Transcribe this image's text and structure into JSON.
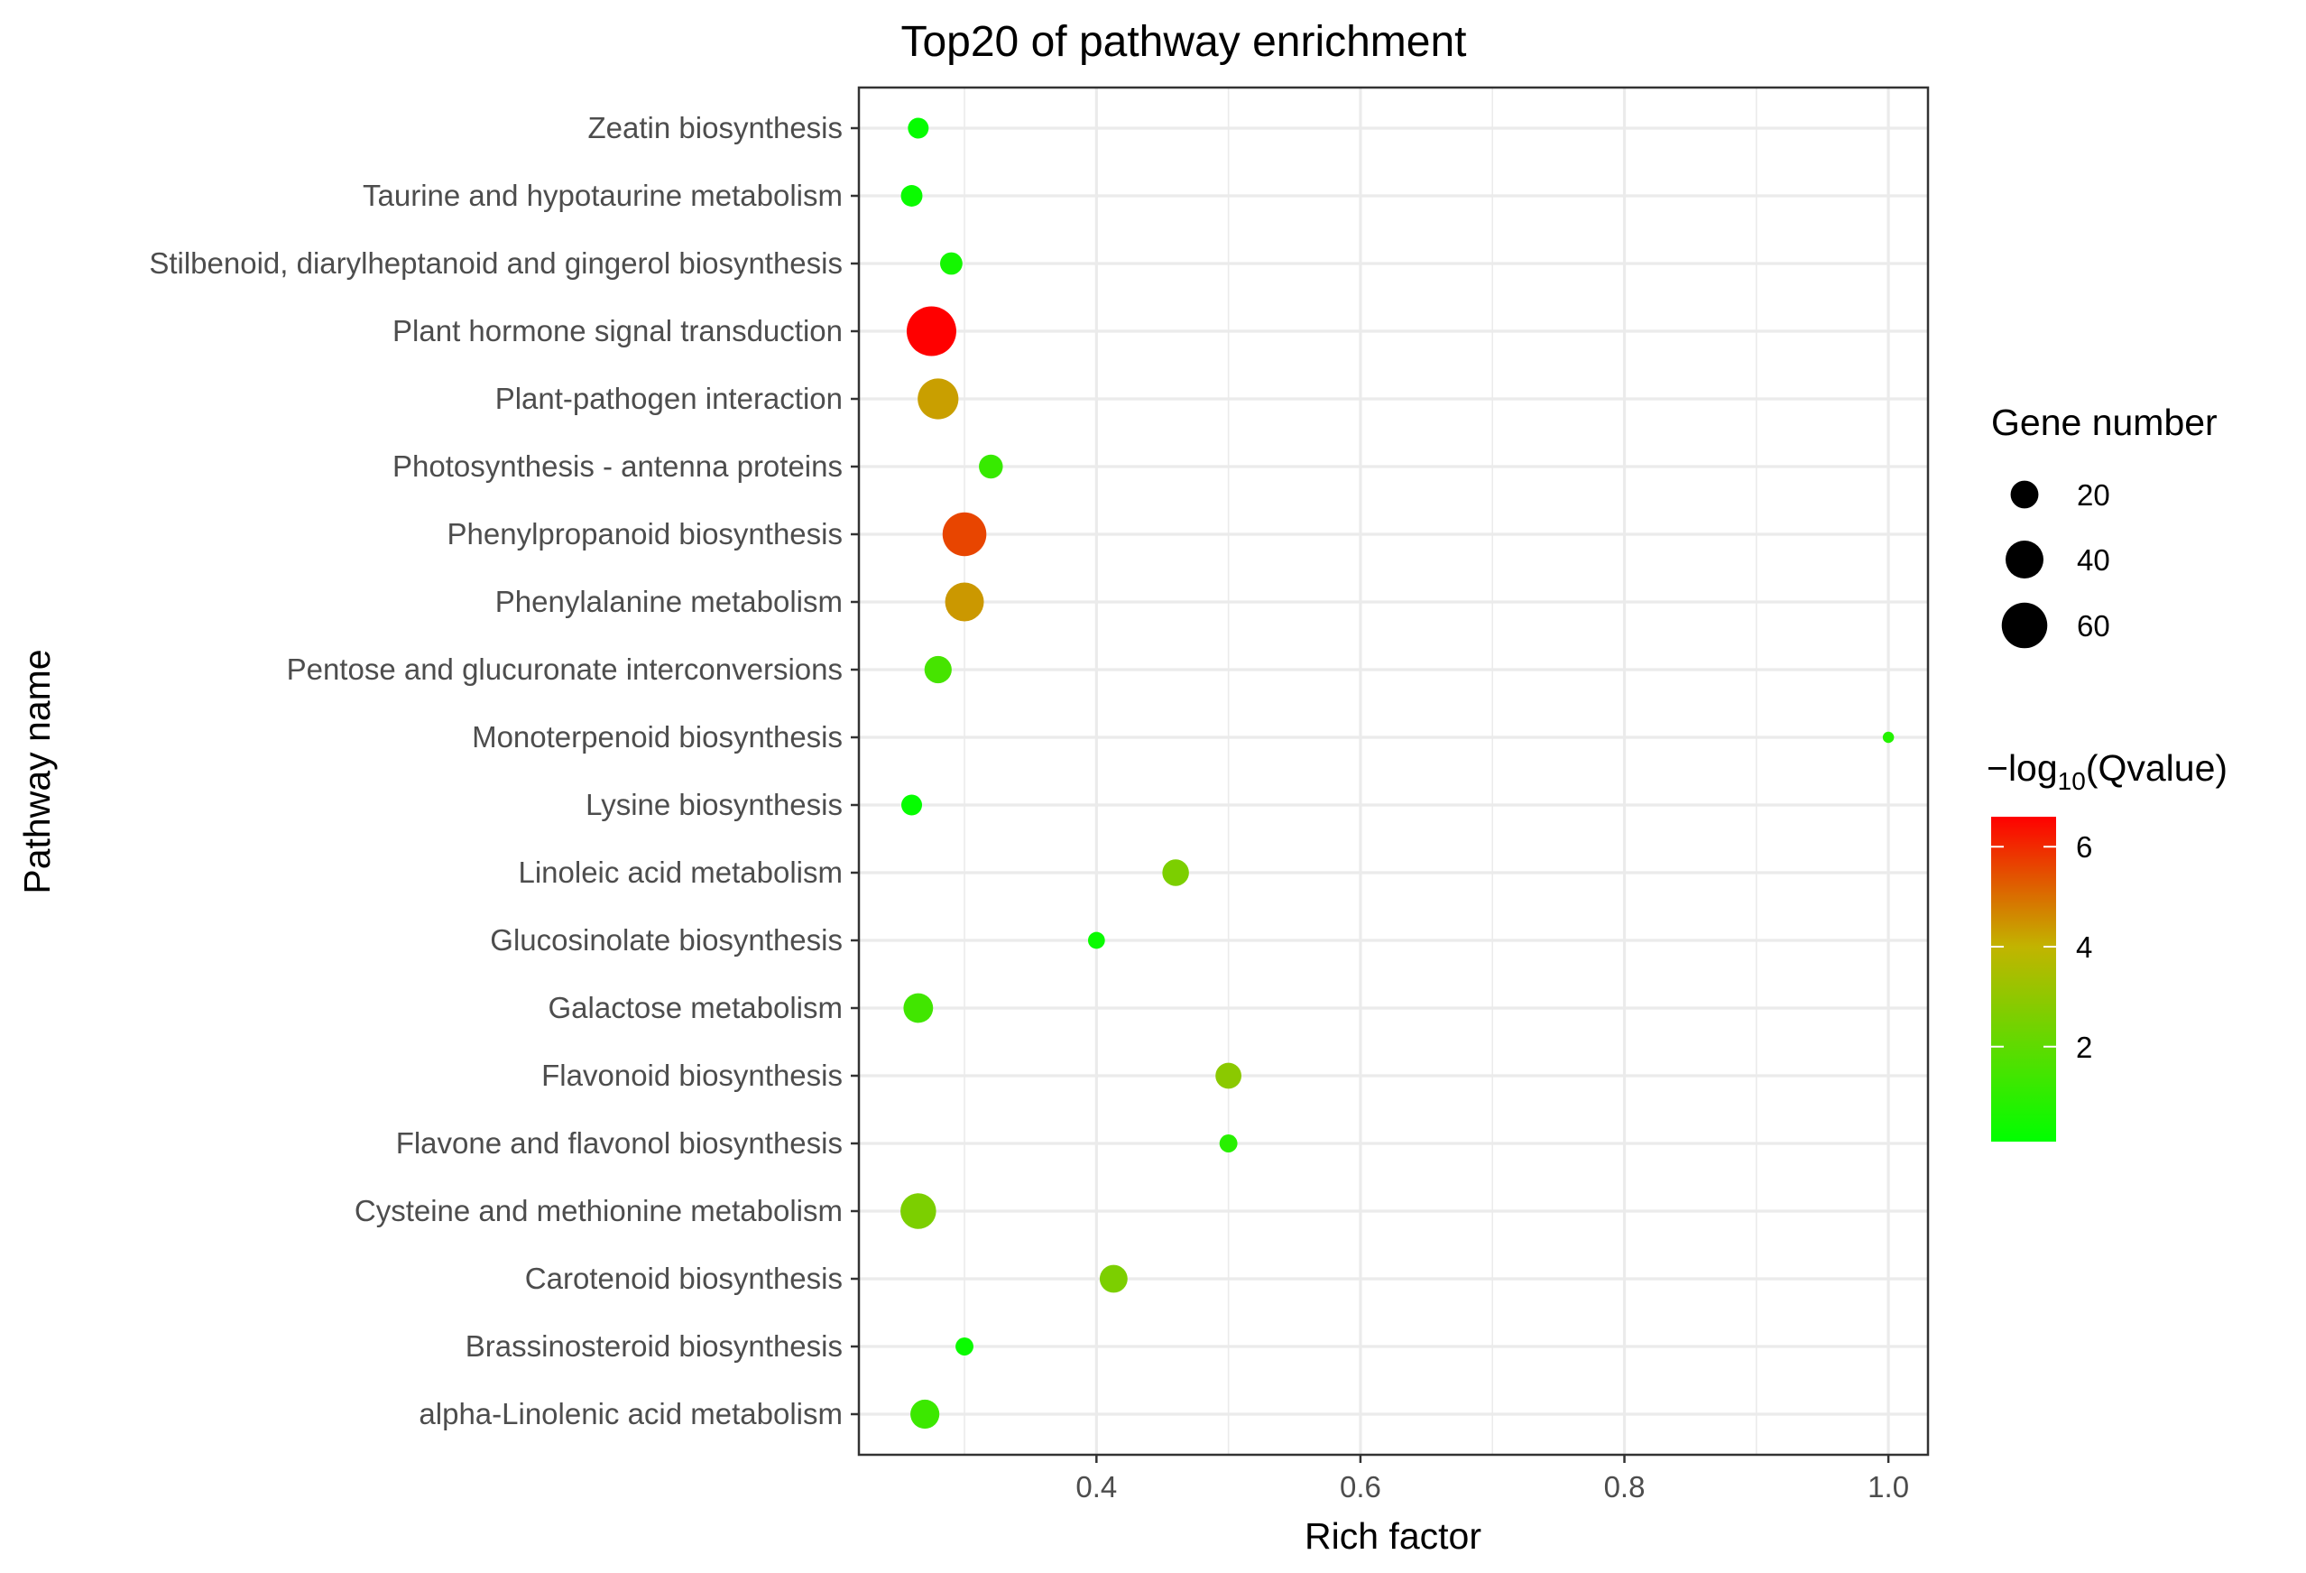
{
  "chart_data": {
    "type": "scatter",
    "title": "Top20 of pathway enrichment",
    "xlabel": "Rich factor",
    "ylabel": "Pathway name",
    "xlim": [
      0.22,
      1.03
    ],
    "x_ticks": [
      0.4,
      0.6,
      0.8,
      1.0
    ],
    "x_tick_labels": [
      "0.4",
      "0.6",
      "0.8",
      "1.0"
    ],
    "grid": true,
    "categories": [
      "alpha-Linolenic acid metabolism",
      "Brassinosteroid biosynthesis",
      "Carotenoid biosynthesis",
      "Cysteine and methionine metabolism",
      "Flavone and flavonol biosynthesis",
      "Flavonoid biosynthesis",
      "Galactose metabolism",
      "Glucosinolate biosynthesis",
      "Linoleic acid metabolism",
      "Lysine biosynthesis",
      "Monoterpenoid biosynthesis",
      "Pentose and glucuronate interconversions",
      "Phenylalanine metabolism",
      "Phenylpropanoid biosynthesis",
      "Photosynthesis - antenna proteins",
      "Plant-pathogen interaction",
      "Plant hormone signal transduction",
      "Stilbenoid, diarylheptanoid and gingerol biosynthesis",
      "Taurine and hypotaurine metabolism",
      "Zeatin biosynthesis"
    ],
    "points": [
      {
        "pathway": "alpha-Linolenic acid metabolism",
        "rich_factor": 0.27,
        "gene_number": 22,
        "neg_log10_qvalue": 1.3
      },
      {
        "pathway": "Brassinosteroid biosynthesis",
        "rich_factor": 0.3,
        "gene_number": 7,
        "neg_log10_qvalue": 0.3
      },
      {
        "pathway": "Carotenoid biosynthesis",
        "rich_factor": 0.413,
        "gene_number": 20,
        "neg_log10_qvalue": 2.6
      },
      {
        "pathway": "Cysteine and methionine metabolism",
        "rich_factor": 0.265,
        "gene_number": 35,
        "neg_log10_qvalue": 2.6
      },
      {
        "pathway": "Flavone and flavonol biosynthesis",
        "rich_factor": 0.5,
        "gene_number": 7,
        "neg_log10_qvalue": 0.9
      },
      {
        "pathway": "Flavonoid biosynthesis",
        "rich_factor": 0.5,
        "gene_number": 17,
        "neg_log10_qvalue": 2.9
      },
      {
        "pathway": "Galactose metabolism",
        "rich_factor": 0.265,
        "gene_number": 23,
        "neg_log10_qvalue": 1.4
      },
      {
        "pathway": "Glucosinolate biosynthesis",
        "rich_factor": 0.4,
        "gene_number": 6,
        "neg_log10_qvalue": 0.3
      },
      {
        "pathway": "Linoleic acid metabolism",
        "rich_factor": 0.46,
        "gene_number": 18,
        "neg_log10_qvalue": 2.6
      },
      {
        "pathway": "Lysine biosynthesis",
        "rich_factor": 0.26,
        "gene_number": 10,
        "neg_log10_qvalue": 0.2
      },
      {
        "pathway": "Monoterpenoid biosynthesis",
        "rich_factor": 1.0,
        "gene_number": 2,
        "neg_log10_qvalue": 0.8
      },
      {
        "pathway": "Pentose and glucuronate interconversions",
        "rich_factor": 0.28,
        "gene_number": 19,
        "neg_log10_qvalue": 1.5
      },
      {
        "pathway": "Phenylalanine metabolism",
        "rich_factor": 0.3,
        "gene_number": 42,
        "neg_log10_qvalue": 4.4
      },
      {
        "pathway": "Phenylpropanoid biosynthesis",
        "rich_factor": 0.3,
        "gene_number": 55,
        "neg_log10_qvalue": 5.6
      },
      {
        "pathway": "Photosynthesis - antenna proteins",
        "rich_factor": 0.32,
        "gene_number": 14,
        "neg_log10_qvalue": 1.2
      },
      {
        "pathway": "Plant-pathogen interaction",
        "rich_factor": 0.28,
        "gene_number": 47,
        "neg_log10_qvalue": 4.3
      },
      {
        "pathway": "Plant hormone signal transduction",
        "rich_factor": 0.275,
        "gene_number": 72,
        "neg_log10_qvalue": 6.6
      },
      {
        "pathway": "Stilbenoid, diarylheptanoid and gingerol biosynthesis",
        "rich_factor": 0.29,
        "gene_number": 12,
        "neg_log10_qvalue": 0.5
      },
      {
        "pathway": "Taurine and hypotaurine metabolism",
        "rich_factor": 0.26,
        "gene_number": 11,
        "neg_log10_qvalue": 0.3
      },
      {
        "pathway": "Zeatin biosynthesis",
        "rich_factor": 0.265,
        "gene_number": 10,
        "neg_log10_qvalue": 0.2
      }
    ],
    "size_legend": {
      "title": "Gene number",
      "breaks": [
        20,
        40,
        60
      ],
      "labels": [
        "20",
        "40",
        "60"
      ]
    },
    "color_legend": {
      "title_prefix": "−log",
      "title_subscript": "10",
      "title_suffix": "(Qvalue)",
      "range": [
        0.1,
        6.6
      ],
      "breaks": [
        2,
        4,
        6
      ],
      "labels": [
        "2",
        "4",
        "6"
      ],
      "low_color": "#00ff00",
      "high_color": "#ff0000"
    },
    "legend_placement": "right"
  }
}
